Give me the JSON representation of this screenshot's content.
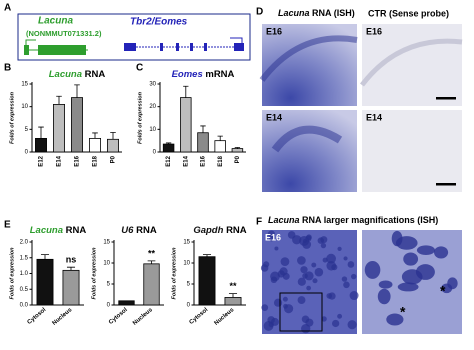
{
  "panel_labels": [
    "A",
    "B",
    "C",
    "D",
    "E",
    "F"
  ],
  "panel_a": {
    "lacuna": "Lacuna",
    "lacuna_id": "(NONMMUT071331.2)",
    "eomes": "Tbr2/Eomes"
  },
  "chart_data": [
    {
      "type": "bar",
      "title_gene": "Lacuna",
      "title_rest": "RNA",
      "title_color": "#2e9e2e",
      "ylabel": "Folds of expression",
      "categories": [
        "E12",
        "E14",
        "E16",
        "E18",
        "P0"
      ],
      "values": [
        3,
        10.5,
        12,
        3,
        2.8
      ],
      "errors": [
        2.5,
        1.8,
        2.8,
        1.2,
        1.5
      ],
      "colors": [
        "#111111",
        "#bdbdbd",
        "#8a8a8a",
        "#ffffff",
        "#bdbdbd"
      ],
      "ylim": [
        0,
        15
      ],
      "yticks": [
        0,
        5,
        10,
        15
      ]
    },
    {
      "type": "bar",
      "title_gene": "Eomes",
      "title_rest": "mRNA",
      "title_color": "#2323b8",
      "ylabel": "Folds of expression",
      "categories": [
        "E12",
        "E14",
        "E16",
        "E18",
        "P0"
      ],
      "values": [
        3.5,
        24,
        8.5,
        5,
        1.5
      ],
      "errors": [
        0.5,
        5,
        3,
        2,
        0.5
      ],
      "colors": [
        "#111111",
        "#bdbdbd",
        "#8a8a8a",
        "#ffffff",
        "#bdbdbd"
      ],
      "ylim": [
        0,
        30
      ],
      "yticks": [
        0,
        10,
        20,
        30
      ]
    },
    {
      "type": "bar",
      "title_gene": "Lacuna",
      "title_rest": "RNA",
      "title_color": "#2e9e2e",
      "ylabel": "Folds of expression",
      "categories": [
        "Cytosol",
        "Nucleus"
      ],
      "values": [
        1.45,
        1.1
      ],
      "errors": [
        0.15,
        0.1
      ],
      "colors": [
        "#111111",
        "#9a9a9a"
      ],
      "ylim": [
        0,
        2
      ],
      "yticks": [
        {
          "value": 0,
          "label": "0.0"
        },
        {
          "value": 0.5,
          "label": "0.5"
        },
        {
          "value": 1,
          "label": "1.0"
        },
        {
          "value": 1.5,
          "label": "1.5"
        },
        {
          "value": 2,
          "label": "2.0"
        }
      ],
      "annotations": [
        {
          "category": "Nucleus",
          "text": "ns"
        }
      ]
    },
    {
      "type": "bar",
      "title_gene": "U6",
      "title_rest": "RNA",
      "title_color": "#111111",
      "ylabel": "Folds of expression",
      "categories": [
        "Cytosol",
        "Nucleus"
      ],
      "values": [
        1,
        9.8
      ],
      "errors": [
        0,
        0.7
      ],
      "colors": [
        "#111111",
        "#9a9a9a"
      ],
      "ylim": [
        0,
        15
      ],
      "yticks": [
        0,
        5,
        10,
        15
      ],
      "annotations": [
        {
          "category": "Nucleus",
          "text": "**"
        }
      ]
    },
    {
      "type": "bar",
      "title_gene": "Gapdh",
      "title_rest": "RNA",
      "title_color": "#111111",
      "ylabel": "Folds of expression",
      "categories": [
        "Cytosol",
        "Nucleus"
      ],
      "values": [
        11.5,
        1.8
      ],
      "errors": [
        0.5,
        0.9
      ],
      "colors": [
        "#111111",
        "#9a9a9a"
      ],
      "ylim": [
        0,
        15
      ],
      "yticks": [
        0,
        5,
        10,
        15
      ],
      "annotations": [
        {
          "category": "Nucleus",
          "text": "**"
        }
      ]
    }
  ],
  "panel_d": {
    "title_gene": "Lacuna",
    "title_rest": "RNA (ISH)",
    "ctr": "CTR (Sense probe)",
    "labels": [
      "E16",
      "E16",
      "E14",
      "E14"
    ]
  },
  "panel_f": {
    "title_gene": "Lacuna",
    "title_rest": "RNA larger magnifications (ISH)",
    "label": "E16",
    "marks": [
      "*",
      "*"
    ]
  }
}
